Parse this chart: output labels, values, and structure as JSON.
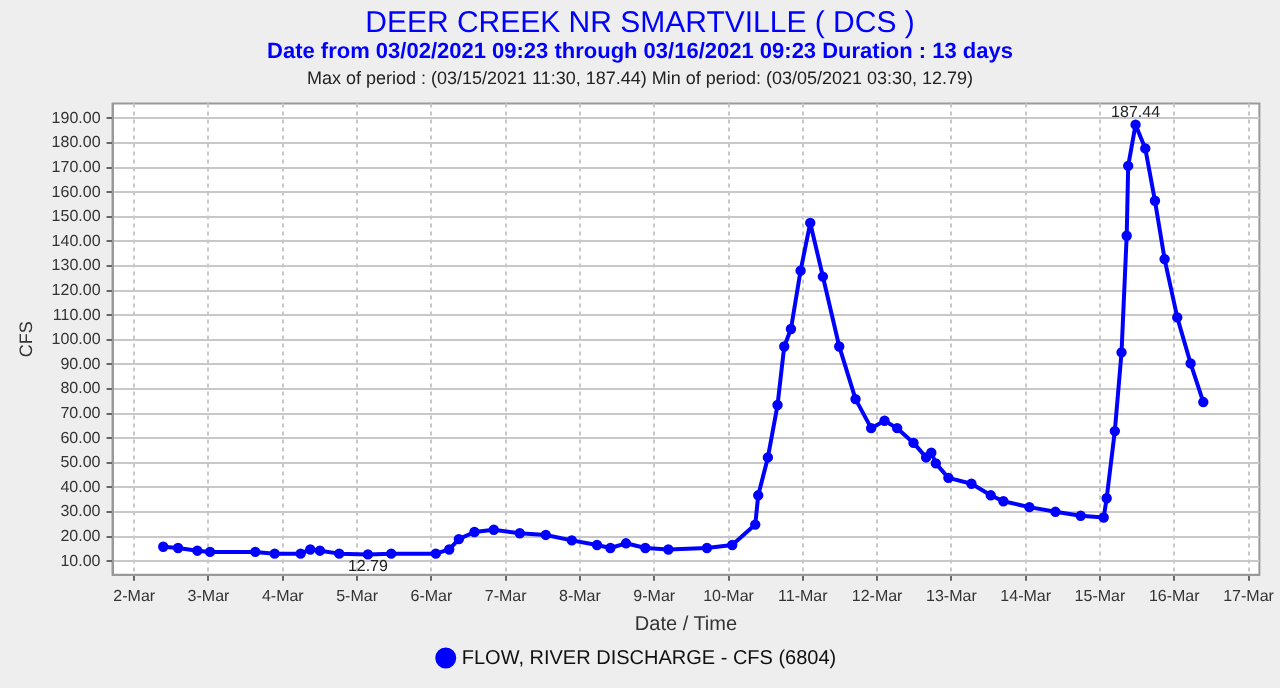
{
  "chart_data": {
    "type": "line",
    "title": "DEER CREEK NR SMARTVILLE ( DCS )",
    "subtitle": "Date from 03/02/2021 09:23 through 03/16/2021 09:23 Duration : 13 days",
    "xlabel": "Date / Time",
    "ylabel": "CFS",
    "annotations": [
      "Max of period : (03/15/2021 11:30, 187.44)  Min of period: (03/05/2021 03:30,  12.79)",
      {
        "text": "12.79",
        "x": "2021-03-05T03:30",
        "y": 12.79
      },
      {
        "text": "187.44",
        "x": "2021-03-15T11:30",
        "y": 187.44
      }
    ],
    "x": [
      "2021-03-02T09:23",
      "2021-03-02T14:10",
      "2021-03-02T20:24",
      "2021-03-03T00:30",
      "2021-03-03T15:07",
      "2021-03-03T21:22",
      "2021-03-04T05:46",
      "2021-03-04T08:53",
      "2021-03-04T12:00",
      "2021-03-04T18:14",
      "2021-03-05T03:30",
      "2021-03-05T11:02",
      "2021-03-06T01:26",
      "2021-03-06T05:46",
      "2021-03-06T08:53",
      "2021-03-06T13:55",
      "2021-03-06T20:10",
      "2021-03-07T04:34",
      "2021-03-07T12:58",
      "2021-03-07T21:22",
      "2021-03-08T05:31",
      "2021-03-08T09:50",
      "2021-03-08T14:53",
      "2021-03-08T21:07",
      "2021-03-09T04:34",
      "2021-03-09T17:02",
      "2021-03-10T01:12",
      "2021-03-10T08:38",
      "2021-03-10T09:36",
      "2021-03-10T12:43",
      "2021-03-10T15:50",
      "2021-03-10T18:00",
      "2021-03-10T20:10",
      "2021-03-10T23:17",
      "2021-03-11T02:24",
      "2021-03-11T06:29",
      "2021-03-11T11:46",
      "2021-03-11T17:02",
      "2021-03-11T22:05",
      "2021-03-12T02:24",
      "2021-03-12T06:29",
      "2021-03-12T11:46",
      "2021-03-12T15:50",
      "2021-03-12T17:31",
      "2021-03-12T18:58",
      "2021-03-12T23:02",
      "2021-03-13T06:29",
      "2021-03-13T12:43",
      "2021-03-13T16:48",
      "2021-03-14T01:12",
      "2021-03-14T09:36",
      "2021-03-14T17:46",
      "2021-03-15T01:12",
      "2021-03-15T02:10",
      "2021-03-15T04:48",
      "2021-03-15T06:58",
      "2021-03-15T08:38",
      "2021-03-15T09:07",
      "2021-03-15T11:30",
      "2021-03-15T14:38",
      "2021-03-15T17:46",
      "2021-03-15T20:53",
      "2021-03-16T00:58",
      "2021-03-16T05:17",
      "2021-03-16T09:23"
    ],
    "series": [
      {
        "name": "FLOW, RIVER DISCHARGE - CFS (6804)",
        "color": "#0000ff",
        "values": [
          15.9,
          15.4,
          14.3,
          13.8,
          13.8,
          13.1,
          13.1,
          14.8,
          14.3,
          13.1,
          12.79,
          13.1,
          13.1,
          14.8,
          19.0,
          21.9,
          22.8,
          21.4,
          20.7,
          18.5,
          16.6,
          15.4,
          17.3,
          15.4,
          14.8,
          15.4,
          16.6,
          24.9,
          36.8,
          52.2,
          73.5,
          97.3,
          104.4,
          128.1,
          147.5,
          125.7,
          97.3,
          75.9,
          64.1,
          67.1,
          64.1,
          58.1,
          52.2,
          54.1,
          49.8,
          43.9,
          41.5,
          36.8,
          34.4,
          32.0,
          30.1,
          28.5,
          27.8,
          35.6,
          62.9,
          94.9,
          142.3,
          170.7,
          187.44,
          177.8,
          156.5,
          132.8,
          109.1,
          90.4,
          74.7
        ]
      }
    ],
    "xlim": [
      "2021-03-01T17:00",
      "2021-03-17T03:30"
    ],
    "xticks": [
      {
        "value": "2021-03-02",
        "label": "2-Mar"
      },
      {
        "value": "2021-03-03",
        "label": "3-Mar"
      },
      {
        "value": "2021-03-04",
        "label": "4-Mar"
      },
      {
        "value": "2021-03-05",
        "label": "5-Mar"
      },
      {
        "value": "2021-03-06",
        "label": "6-Mar"
      },
      {
        "value": "2021-03-07",
        "label": "7-Mar"
      },
      {
        "value": "2021-03-08",
        "label": "8-Mar"
      },
      {
        "value": "2021-03-09",
        "label": "9-Mar"
      },
      {
        "value": "2021-03-10",
        "label": "10-Mar"
      },
      {
        "value": "2021-03-11",
        "label": "11-Mar"
      },
      {
        "value": "2021-03-12",
        "label": "12-Mar"
      },
      {
        "value": "2021-03-13",
        "label": "13-Mar"
      },
      {
        "value": "2021-03-14",
        "label": "14-Mar"
      },
      {
        "value": "2021-03-15",
        "label": "15-Mar"
      },
      {
        "value": "2021-03-16",
        "label": "16-Mar"
      },
      {
        "value": "2021-03-17",
        "label": "17-Mar"
      }
    ],
    "ylim": [
      4.5,
      196
    ],
    "yticks": [
      {
        "value": 10,
        "label": "10.00"
      },
      {
        "value": 20,
        "label": "20.00"
      },
      {
        "value": 30,
        "label": "30.00"
      },
      {
        "value": 40,
        "label": "40.00"
      },
      {
        "value": 50,
        "label": "50.00"
      },
      {
        "value": 60,
        "label": "60.00"
      },
      {
        "value": 70,
        "label": "70.00"
      },
      {
        "value": 80,
        "label": "80.00"
      },
      {
        "value": 90,
        "label": "90.00"
      },
      {
        "value": 100,
        "label": "100.00"
      },
      {
        "value": 110,
        "label": "110.00"
      },
      {
        "value": 120,
        "label": "120.00"
      },
      {
        "value": 130,
        "label": "130.00"
      },
      {
        "value": 140,
        "label": "140.00"
      },
      {
        "value": 150,
        "label": "150.00"
      },
      {
        "value": 160,
        "label": "160.00"
      },
      {
        "value": 170,
        "label": "170.00"
      },
      {
        "value": 180,
        "label": "180.00"
      },
      {
        "value": 190,
        "label": "190.00"
      }
    ],
    "grid": true,
    "legend": "bottom",
    "marker": "circle",
    "line_style": "solid"
  }
}
